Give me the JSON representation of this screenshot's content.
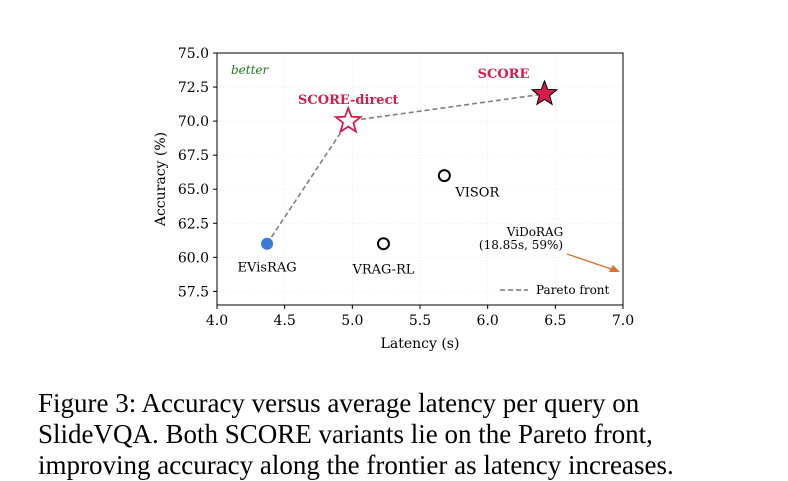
{
  "chart_data": {
    "type": "scatter",
    "xlabel": "Latency (s)",
    "ylabel": "Accuracy (%)",
    "xlim": [
      4.0,
      7.0
    ],
    "ylim": [
      56.5,
      75.0
    ],
    "xticks": [
      "4.0",
      "4.5",
      "5.0",
      "5.5",
      "6.0",
      "6.5",
      "7.0"
    ],
    "yticks": [
      "57.5",
      "60.0",
      "62.5",
      "65.0",
      "67.5",
      "70.0",
      "72.5",
      "75.0"
    ],
    "grid": true,
    "corner_note": "better",
    "points": [
      {
        "label": "EVisRAG",
        "x": 4.37,
        "y": 61.0,
        "marker": "filled-circle",
        "color": "#3a7bd5"
      },
      {
        "label": "VRAG-RL",
        "x": 5.23,
        "y": 61.0,
        "marker": "open-circle",
        "color": "#000000"
      },
      {
        "label": "VISOR",
        "x": 5.68,
        "y": 66.0,
        "marker": "open-circle",
        "color": "#000000"
      },
      {
        "label": "SCORE-direct",
        "x": 4.97,
        "y": 70.0,
        "marker": "open-star",
        "color": "#d81b4a"
      },
      {
        "label": "SCORE",
        "x": 6.42,
        "y": 72.0,
        "marker": "filled-star",
        "color": "#d81b4a"
      }
    ],
    "pareto_front": {
      "name": "Pareto front",
      "x": [
        4.37,
        4.97,
        6.42
      ],
      "y": [
        61.0,
        70.0,
        72.0
      ]
    },
    "offscreen_annotation": {
      "line1": "ViDoRAG",
      "line2": "(18.85s, 59%)",
      "arrow_color": "#e07030"
    },
    "legend": {
      "placement": "bottom-right",
      "entries": [
        "Pareto front"
      ]
    }
  },
  "caption": "Figure 3: Accuracy versus average latency per query on SlideVQA. Both SCORE variants lie on the Pareto front, improving accuracy along the frontier as latency increases."
}
